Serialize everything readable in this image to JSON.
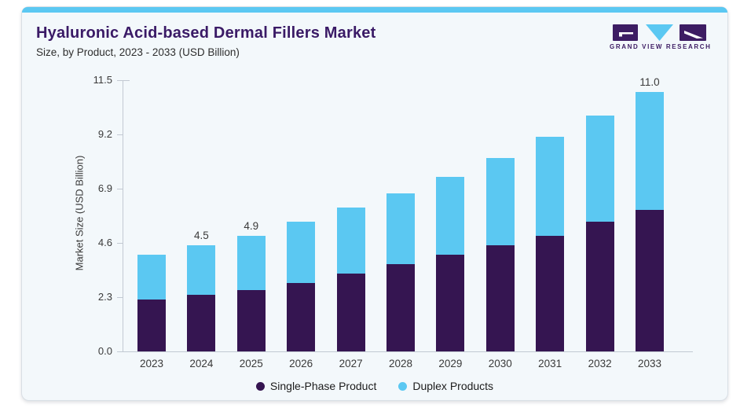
{
  "header": {
    "title": "Hyaluronic Acid-based Dermal Fillers Market",
    "subtitle": "Size, by Product, 2023 - 2033 (USD Billion)"
  },
  "logo": {
    "text": "GRAND VIEW RESEARCH"
  },
  "chart_data": {
    "type": "bar",
    "stacked": true,
    "title": "Hyaluronic Acid-based Dermal Fillers Market",
    "subtitle": "Size, by Product, 2023 - 2033 (USD Billion)",
    "xlabel": "",
    "ylabel": "Market Size (USD Billion)",
    "categories": [
      "2023",
      "2024",
      "2025",
      "2026",
      "2027",
      "2028",
      "2029",
      "2030",
      "2031",
      "2032",
      "2033"
    ],
    "series": [
      {
        "name": "Single-Phase Product",
        "color": "#351551",
        "values": [
          2.2,
          2.4,
          2.6,
          2.9,
          3.3,
          3.7,
          4.1,
          4.5,
          4.9,
          5.5,
          6.0
        ]
      },
      {
        "name": "Duplex Products",
        "color": "#5bc8f2",
        "values": [
          1.9,
          2.1,
          2.3,
          2.6,
          2.8,
          3.0,
          3.3,
          3.7,
          4.2,
          4.5,
          5.0
        ]
      }
    ],
    "totals": [
      4.1,
      4.5,
      4.9,
      5.5,
      6.1,
      6.7,
      7.4,
      8.2,
      9.1,
      10.0,
      11.0
    ],
    "total_labels": {
      "2024": "4.5",
      "2025": "4.9",
      "2033": "11.0"
    },
    "y_ticks": [
      0.0,
      2.3,
      4.6,
      6.9,
      9.2,
      11.5
    ],
    "ylim": [
      0,
      11.5
    ],
    "grid": false,
    "legend_position": "bottom"
  },
  "legend": {
    "items": [
      {
        "label": "Single-Phase Product",
        "color": "#351551"
      },
      {
        "label": "Duplex Products",
        "color": "#5bc8f2"
      }
    ]
  },
  "colors": {
    "card_background": "#f3f8fb",
    "card_border": "#d9dfe5",
    "top_accent": "#5bc8f2",
    "title_text": "#3a1a66",
    "axis_line": "#c2c9d2",
    "bar_single_phase": "#351551",
    "bar_duplex": "#5bc8f2"
  }
}
